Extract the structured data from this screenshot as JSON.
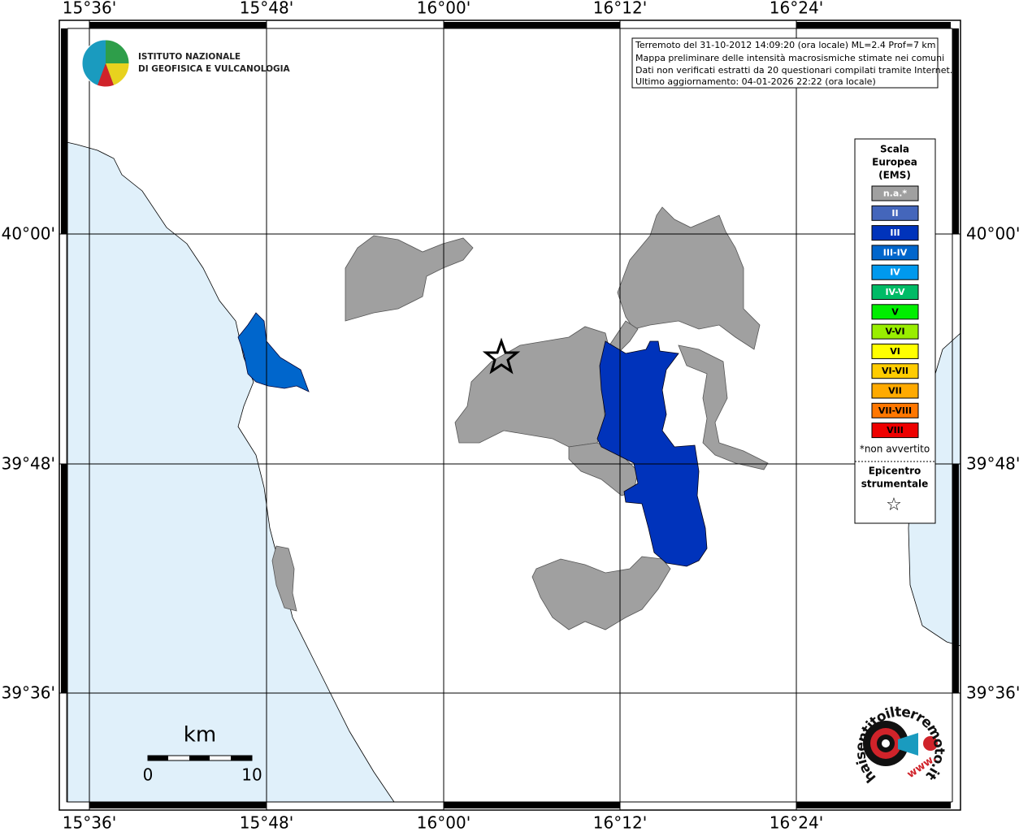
{
  "map": {
    "x_labels": [
      "15°36'",
      "15°48'",
      "16°00'",
      "16°12'",
      "16°24'"
    ],
    "y_labels": [
      "40°00'",
      "39°48'",
      "39°36'"
    ],
    "logo": [
      "ISTITUTO NAZIONALE",
      "DI GEOFISICA E VULCANOLOGIA"
    ],
    "info": [
      "Terremoto del 31-10-2012 14:09:20 (ora locale) ML=2.4 Prof=7 km",
      "Mappa preliminare delle intensità macrosismiche stimate nei comuni",
      "Dati non verificati estratti da 20 questionari compilati tramite Internet.",
      "Ultimo aggiornamento: 04-01-2026 22:22 (ora locale)"
    ],
    "legend": {
      "title": [
        "Scala",
        "Europea",
        "(EMS)"
      ],
      "items": [
        {
          "label": "n.a.*",
          "color": "#a0a0a0"
        },
        {
          "label": "II",
          "color": "#4466bb"
        },
        {
          "label": "III",
          "color": "#0033bb"
        },
        {
          "label": "III-IV",
          "color": "#0066cc"
        },
        {
          "label": "IV",
          "color": "#0099ee"
        },
        {
          "label": "IV-V",
          "color": "#00bb66"
        },
        {
          "label": "V",
          "color": "#00ee00"
        },
        {
          "label": "V-VI",
          "color": "#99ee00"
        },
        {
          "label": "VI",
          "color": "#ffff00"
        },
        {
          "label": "VI-VII",
          "color": "#ffcc00"
        },
        {
          "label": "VII",
          "color": "#ffaa00"
        },
        {
          "label": "VII-VIII",
          "color": "#ff7700"
        },
        {
          "label": "VIII",
          "color": "#ee0000"
        }
      ],
      "note": "*non avvertito",
      "epicenter": [
        "Epicentro",
        "strumentale"
      ],
      "epicenter_symbol": "☆"
    },
    "scale_bar": {
      "unit": "km",
      "labels": [
        "0",
        "10"
      ]
    },
    "site": {
      "name": "haisentitoilterremoto.it",
      "prefix": "www."
    }
  }
}
